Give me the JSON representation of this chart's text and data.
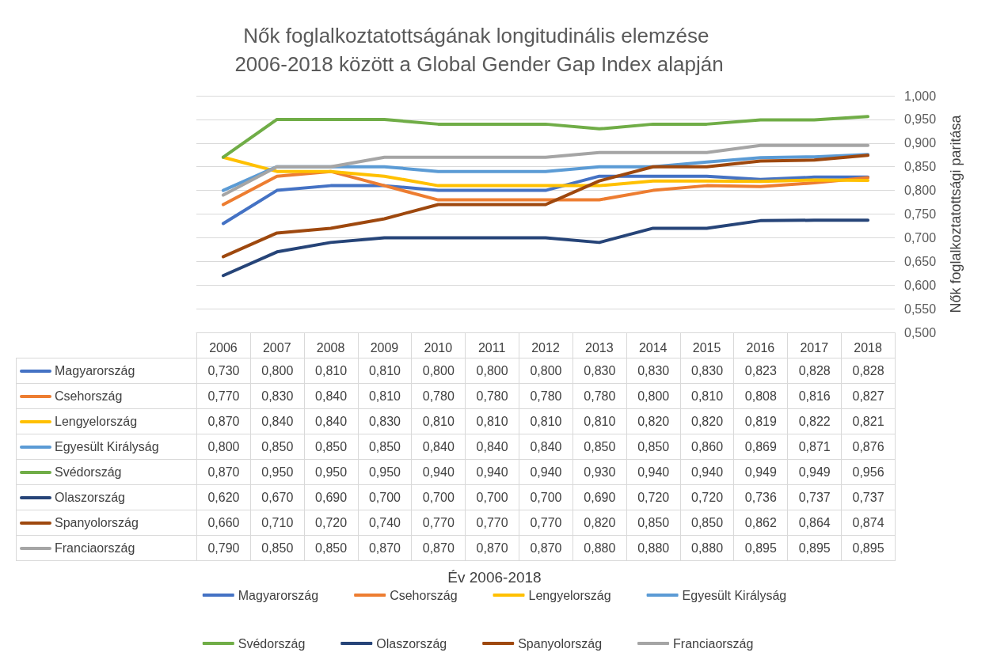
{
  "chart_data": {
    "type": "line",
    "title": "Nők foglalkoztatottságának longitudinális elemzése 2006-2018 között a Global Gender Gap Index alapján",
    "annotations": [
      "Év 2006-2018"
    ],
    "ylabel": "Nők foglalkoztatottsági paritása",
    "categories": [
      "2006",
      "2007",
      "2008",
      "2009",
      "2010",
      "2011",
      "2012",
      "2013",
      "2014",
      "2015",
      "2016",
      "2017",
      "2018"
    ],
    "series": [
      {
        "name": "Magyarország",
        "color": "#4472c4",
        "values": [
          0.73,
          0.8,
          0.81,
          0.81,
          0.8,
          0.8,
          0.8,
          0.83,
          0.83,
          0.83,
          0.823,
          0.828,
          0.828
        ],
        "value_labels": [
          "0,730",
          "0,800",
          "0,810",
          "0,810",
          "0,800",
          "0,800",
          "0,800",
          "0,830",
          "0,830",
          "0,830",
          "0,823",
          "0,828",
          "0,828"
        ]
      },
      {
        "name": "Csehország",
        "color": "#ed7d31",
        "values": [
          0.77,
          0.83,
          0.84,
          0.81,
          0.78,
          0.78,
          0.78,
          0.78,
          0.8,
          0.81,
          0.808,
          0.816,
          0.827
        ],
        "value_labels": [
          "0,770",
          "0,830",
          "0,840",
          "0,810",
          "0,780",
          "0,780",
          "0,780",
          "0,780",
          "0,800",
          "0,810",
          "0,808",
          "0,816",
          "0,827"
        ]
      },
      {
        "name": "Lengyelország",
        "color": "#ffc000",
        "values": [
          0.87,
          0.84,
          0.84,
          0.83,
          0.81,
          0.81,
          0.81,
          0.81,
          0.82,
          0.82,
          0.819,
          0.822,
          0.821
        ],
        "value_labels": [
          "0,870",
          "0,840",
          "0,840",
          "0,830",
          "0,810",
          "0,810",
          "0,810",
          "0,810",
          "0,820",
          "0,820",
          "0,819",
          "0,822",
          "0,821"
        ]
      },
      {
        "name": "Egyesült Királyság",
        "color": "#5b9bd5",
        "values": [
          0.8,
          0.85,
          0.85,
          0.85,
          0.84,
          0.84,
          0.84,
          0.85,
          0.85,
          0.86,
          0.869,
          0.871,
          0.876
        ],
        "value_labels": [
          "0,800",
          "0,850",
          "0,850",
          "0,850",
          "0,840",
          "0,840",
          "0,840",
          "0,850",
          "0,850",
          "0,860",
          "0,869",
          "0,871",
          "0,876"
        ]
      },
      {
        "name": "Svédország",
        "color": "#70ad47",
        "values": [
          0.87,
          0.95,
          0.95,
          0.95,
          0.94,
          0.94,
          0.94,
          0.93,
          0.94,
          0.94,
          0.949,
          0.949,
          0.956
        ],
        "value_labels": [
          "0,870",
          "0,950",
          "0,950",
          "0,950",
          "0,940",
          "0,940",
          "0,940",
          "0,930",
          "0,940",
          "0,940",
          "0,949",
          "0,949",
          "0,956"
        ]
      },
      {
        "name": "Olaszország",
        "color": "#264478",
        "values": [
          0.62,
          0.67,
          0.69,
          0.7,
          0.7,
          0.7,
          0.7,
          0.69,
          0.72,
          0.72,
          0.736,
          0.737,
          0.737
        ],
        "value_labels": [
          "0,620",
          "0,670",
          "0,690",
          "0,700",
          "0,700",
          "0,700",
          "0,700",
          "0,690",
          "0,720",
          "0,720",
          "0,736",
          "0,737",
          "0,737"
        ]
      },
      {
        "name": "Spanyolország",
        "color": "#9e480e",
        "values": [
          0.66,
          0.71,
          0.72,
          0.74,
          0.77,
          0.77,
          0.77,
          0.82,
          0.85,
          0.85,
          0.862,
          0.864,
          0.874
        ],
        "value_labels": [
          "0,660",
          "0,710",
          "0,720",
          "0,740",
          "0,770",
          "0,770",
          "0,770",
          "0,820",
          "0,850",
          "0,850",
          "0,862",
          "0,864",
          "0,874"
        ]
      },
      {
        "name": "Franciaország",
        "color": "#a5a5a5",
        "values": [
          0.79,
          0.85,
          0.85,
          0.87,
          0.87,
          0.87,
          0.87,
          0.88,
          0.88,
          0.88,
          0.895,
          0.895,
          0.895
        ],
        "value_labels": [
          "0,790",
          "0,850",
          "0,850",
          "0,870",
          "0,870",
          "0,870",
          "0,870",
          "0,880",
          "0,880",
          "0,880",
          "0,895",
          "0,895",
          "0,895"
        ]
      }
    ],
    "ylim": [
      0.5,
      1.0
    ],
    "yticks": [
      {
        "value": 0.5,
        "label": "0,500"
      },
      {
        "value": 0.55,
        "label": "0,550"
      },
      {
        "value": 0.6,
        "label": "0,600"
      },
      {
        "value": 0.65,
        "label": "0,650"
      },
      {
        "value": 0.7,
        "label": "0,700"
      },
      {
        "value": 0.75,
        "label": "0,750"
      },
      {
        "value": 0.8,
        "label": "0,800"
      },
      {
        "value": 0.85,
        "label": "0,850"
      },
      {
        "value": 0.9,
        "label": "0,900"
      },
      {
        "value": 0.95,
        "label": "0,950"
      },
      {
        "value": 1.0,
        "label": "1,000"
      }
    ],
    "grid": "y",
    "legend": "bottom",
    "marker": "none",
    "line_style": "solid"
  }
}
